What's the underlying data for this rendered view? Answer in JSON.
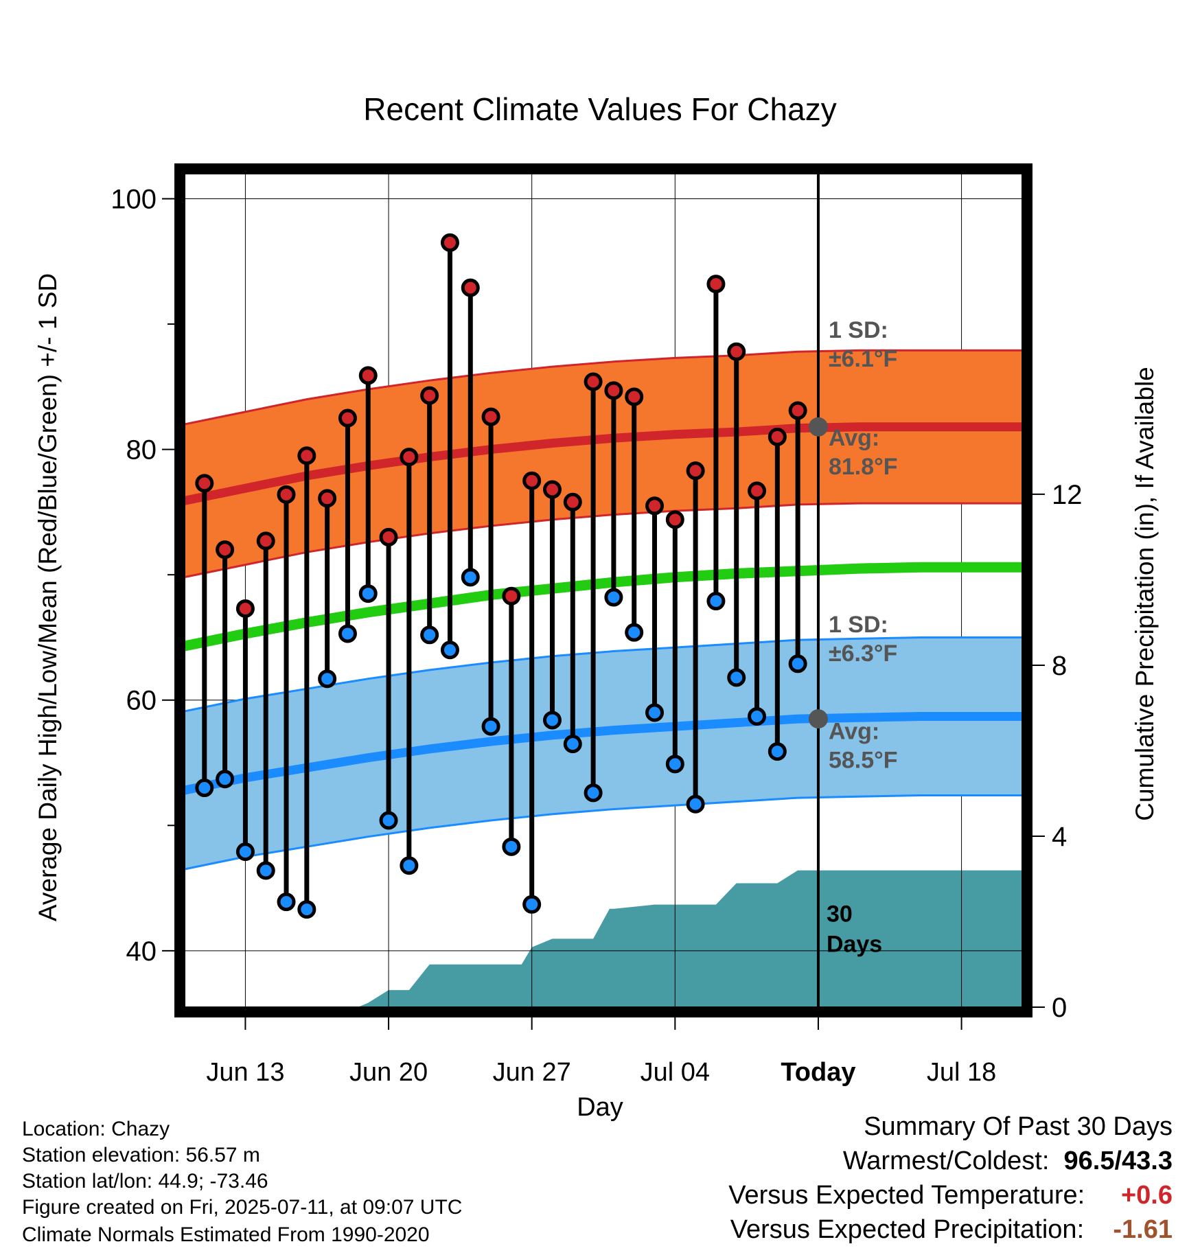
{
  "chart_data": {
    "type": "line",
    "title": "Recent Climate Values For Chazy",
    "xlabel": "Day",
    "ylabel": "Average Daily High/Low/Mean (Red/Blue/Green) +/- 1 SD",
    "y2label": "Cumulative Precipitation (in), If Available",
    "x_tick_labels": [
      "Jun 13",
      "Jun 20",
      "Jun 27",
      "Jul 04",
      "Today",
      "Jul 18"
    ],
    "x_tick_days": [
      0,
      7,
      14,
      21,
      28,
      35
    ],
    "xlim": [
      -3,
      38
    ],
    "ylim": [
      35.5,
      102
    ],
    "y_ticks": [
      40,
      60,
      80,
      100
    ],
    "y2lim": [
      0,
      19.5
    ],
    "y2_ticks": [
      0,
      4,
      8,
      12
    ],
    "grid": true,
    "today_day": 28,
    "days": [
      -2,
      -1,
      0,
      1,
      2,
      3,
      4,
      5,
      6,
      7,
      8,
      9,
      10,
      11,
      12,
      13,
      14,
      15,
      16,
      17,
      18,
      19,
      20,
      21,
      22,
      23,
      24,
      25,
      26,
      27
    ],
    "observed_high": [
      77.3,
      72.0,
      67.3,
      72.7,
      76.4,
      79.5,
      76.1,
      82.5,
      85.9,
      73.0,
      79.4,
      84.3,
      96.5,
      92.9,
      82.6,
      68.3,
      77.5,
      76.8,
      75.8,
      85.4,
      84.7,
      84.2,
      75.5,
      74.4,
      78.3,
      93.2,
      87.8,
      76.7,
      81.0,
      83.1
    ],
    "observed_low": [
      53.0,
      53.7,
      47.9,
      46.4,
      43.9,
      43.3,
      61.7,
      65.3,
      68.5,
      50.4,
      46.8,
      65.2,
      64.0,
      69.8,
      57.9,
      48.3,
      43.7,
      58.4,
      56.5,
      52.6,
      68.2,
      65.4,
      59.0,
      54.9,
      51.7,
      67.9,
      61.8,
      58.7,
      55.9,
      62.9
    ],
    "normal_high_series": {
      "name": "Avg: 81.8°F",
      "days": [
        -3,
        0,
        3,
        6,
        9,
        12,
        15,
        18,
        21,
        24,
        27,
        30,
        33,
        38
      ],
      "values": [
        75.9,
        76.9,
        77.9,
        78.7,
        79.4,
        80.0,
        80.5,
        80.9,
        81.2,
        81.4,
        81.7,
        81.8,
        81.8,
        81.8
      ]
    },
    "normal_high_sd": "1 SD: ±6.1°F",
    "high_sd_value": 6.1,
    "normal_low_series": {
      "name": "Avg: 58.5°F",
      "days": [
        -3,
        0,
        3,
        6,
        9,
        12,
        15,
        18,
        21,
        24,
        27,
        30,
        33,
        38
      ],
      "values": [
        52.8,
        53.8,
        54.6,
        55.4,
        56.1,
        56.7,
        57.2,
        57.6,
        57.9,
        58.2,
        58.5,
        58.6,
        58.7,
        58.7
      ]
    },
    "normal_low_sd": "1 SD: ±6.3°F",
    "low_sd_value": 6.3,
    "normal_mean_series": {
      "days": [
        -3,
        0,
        3,
        6,
        9,
        12,
        15,
        18,
        21,
        24,
        27,
        30,
        33,
        38
      ],
      "values": [
        64.3,
        65.3,
        66.2,
        67.0,
        67.7,
        68.4,
        68.9,
        69.4,
        69.8,
        70.1,
        70.3,
        70.5,
        70.6,
        70.6
      ]
    },
    "precip_cumulative": {
      "days": [
        5.5,
        6.0,
        7.0,
        8.0,
        9.0,
        11.5,
        12.0,
        13.5,
        14.0,
        15.0,
        16.0,
        17.0,
        17.8,
        18.0,
        19.0,
        20.0,
        21.0,
        22.0,
        23.0,
        24.0,
        25.0,
        26.0,
        27.0,
        28.0,
        38.0
      ],
      "values": [
        0.0,
        0.1,
        0.4,
        0.4,
        1.0,
        1.0,
        1.0,
        1.0,
        1.4,
        1.6,
        1.6,
        1.6,
        2.3,
        2.3,
        2.35,
        2.4,
        2.4,
        2.4,
        2.4,
        2.9,
        2.9,
        2.9,
        3.2,
        3.2,
        3.2
      ]
    },
    "precip_label": "30 Days"
  },
  "footer": {
    "location": "Location: Chazy",
    "elevation": "Station elevation: 56.57 m",
    "latlon": "Station lat/lon: 44.9; -73.46",
    "created": "Figure created on Fri, 2025-07-11, at 09:07 UTC",
    "normals": "Climate Normals Estimated From 1990-2020"
  },
  "summary": {
    "heading": "Summary Of Past 30 Days",
    "warm_cold_label": "Warmest/Coldest:",
    "warm_cold_value": "96.5/43.3",
    "temp_label": "Versus Expected Temperature:",
    "temp_value": "+0.6",
    "precip_label": "Versus Expected Precipitation:",
    "precip_value": "-1.61"
  },
  "colors": {
    "high_band": "#f5772d",
    "high_line": "#d0252a",
    "low_band": "#87c2e8",
    "low_line": "#1a8cff",
    "mean_line": "#22cc11",
    "precip_fill": "#479ba3",
    "label_gray": "#555555",
    "temp_delta": "#d0252a",
    "precip_delta": "#a0522d"
  }
}
